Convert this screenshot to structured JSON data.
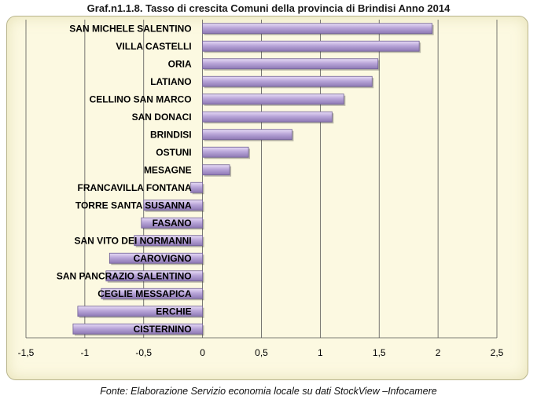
{
  "chart_data": {
    "type": "bar",
    "orientation": "horizontal",
    "title": "Graf.n1.1.8. Tasso di crescita  Comuni della provincia di Brindisi Anno 2014",
    "categories": [
      "SAN MICHELE SALENTINO",
      "VILLA CASTELLI",
      "ORIA",
      "LATIANO",
      "CELLINO SAN MARCO",
      "SAN DONACI",
      "BRINDISI",
      "OSTUNI",
      "MESAGNE",
      "FRANCAVILLA FONTANA",
      "TORRE SANTA SUSANNA",
      "FASANO",
      "SAN VITO DEI NORMANNI",
      "CAROVIGNO",
      "SAN PANCRAZIO SALENTINO",
      "CEGLIE MESSAPICA",
      "ERCHIE",
      "CISTERNINO"
    ],
    "values": [
      1.95,
      1.84,
      1.49,
      1.44,
      1.2,
      1.1,
      0.76,
      0.39,
      0.23,
      -0.1,
      -0.5,
      -0.52,
      -0.58,
      -0.79,
      -0.82,
      -0.86,
      -1.06,
      -1.1
    ],
    "xlim": [
      -1.5,
      2.5
    ],
    "xticks": [
      "-1,5",
      "-1",
      "-0,5",
      "0",
      "0,5",
      "1",
      "1,5",
      "2",
      "2,5"
    ],
    "xlabel": "",
    "ylabel": "",
    "grid": true,
    "bar_color": "#b6a3d6"
  },
  "source": "Fonte: Elaborazione Servizio economia locale su dati StockView –Infocamere"
}
